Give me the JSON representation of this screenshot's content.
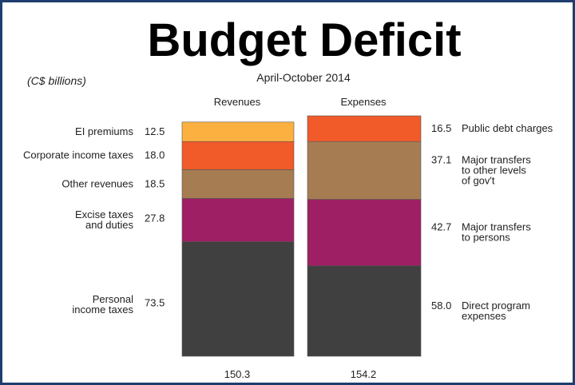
{
  "chart_data": {
    "type": "stacked-bar",
    "title": "Budget Deficit",
    "subtitle": "April-October 2014",
    "unit_label": "(C$ billions)",
    "categories": [
      "Revenues",
      "Expenses"
    ],
    "totals": [
      "150.3",
      "154.2"
    ],
    "bars": [
      {
        "name": "Revenues",
        "total": 150.3,
        "segments": [
          {
            "label": "Personal income taxes",
            "lines": [
              "Personal",
              "income taxes"
            ],
            "value": 73.5,
            "value_label": "73.5",
            "color": "#404040"
          },
          {
            "label": "Excise taxes and duties",
            "lines": [
              "Excise taxes",
              "and duties"
            ],
            "value": 27.8,
            "value_label": "27.8",
            "color": "#9e1f63"
          },
          {
            "label": "Other revenues",
            "lines": [
              "Other revenues"
            ],
            "value": 18.5,
            "value_label": "18.5",
            "color": "#a67c52"
          },
          {
            "label": "Corporate income taxes",
            "lines": [
              "Corporate income taxes"
            ],
            "value": 18.0,
            "value_label": "18.0",
            "color": "#f15a29"
          },
          {
            "label": "EI premiums",
            "lines": [
              "EI premiums"
            ],
            "value": 12.5,
            "value_label": "12.5",
            "color": "#fbb040"
          }
        ]
      },
      {
        "name": "Expenses",
        "total": 154.2,
        "segments": [
          {
            "label": "Direct program expenses",
            "lines": [
              "Direct program",
              "expenses"
            ],
            "value": 58.0,
            "value_label": "58.0",
            "color": "#404040"
          },
          {
            "label": "Major transfers to persons",
            "lines": [
              "Major transfers",
              "to persons"
            ],
            "value": 42.7,
            "value_label": "42.7",
            "color": "#9e1f63"
          },
          {
            "label": "Major transfers to other levels of gov't",
            "lines": [
              "Major transfers",
              "to other levels",
              "of gov't"
            ],
            "value": 37.1,
            "value_label": "37.1",
            "color": "#a67c52"
          },
          {
            "label": "Public debt charges",
            "lines": [
              "Public debt charges"
            ],
            "value": 16.5,
            "value_label": "16.5",
            "color": "#f15a29"
          }
        ]
      }
    ]
  }
}
